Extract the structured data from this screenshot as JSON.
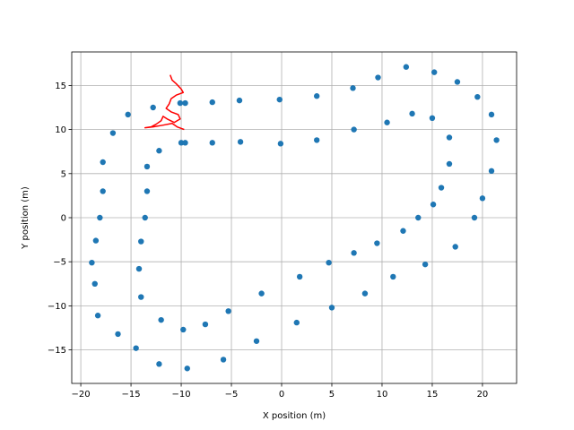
{
  "chart_data": {
    "type": "scatter",
    "title": "",
    "xlabel": "X position (m)",
    "ylabel": "Y position (m)",
    "xlim": [
      -20.9,
      23.4
    ],
    "ylim": [
      -18.8,
      18.8
    ],
    "xticks": [
      -20,
      -15,
      -10,
      -5,
      0,
      5,
      10,
      15,
      20
    ],
    "yticks": [
      -15,
      -10,
      -5,
      0,
      5,
      10,
      15
    ],
    "grid": true,
    "colors": {
      "landmarks": "#1f77b4",
      "trajectory": "#ff0000"
    },
    "series": [
      {
        "type": "scatter",
        "points": [
          [
            12.4,
            17.1
          ],
          [
            15.2,
            16.5
          ],
          [
            17.5,
            15.4
          ],
          [
            19.5,
            13.7
          ],
          [
            20.9,
            11.7
          ],
          [
            21.4,
            8.8
          ],
          [
            20.9,
            5.3
          ],
          [
            20.0,
            2.2
          ],
          [
            19.2,
            0.0
          ],
          [
            17.3,
            -3.3
          ],
          [
            14.3,
            -5.3
          ],
          [
            11.1,
            -6.7
          ],
          [
            8.3,
            -8.6
          ],
          [
            5.0,
            -10.2
          ],
          [
            1.5,
            -11.9
          ],
          [
            -2.5,
            -14.0
          ],
          [
            -5.8,
            -16.1
          ],
          [
            -9.4,
            -17.1
          ],
          [
            -12.2,
            -16.6
          ],
          [
            -14.5,
            -14.8
          ],
          [
            -16.3,
            -13.2
          ],
          [
            -18.3,
            -11.1
          ],
          [
            -18.6,
            -7.5
          ],
          [
            -18.9,
            -5.1
          ],
          [
            -18.5,
            -2.6
          ],
          [
            -18.1,
            0.0
          ],
          [
            -17.8,
            3.0
          ],
          [
            -17.8,
            6.3
          ],
          [
            -16.8,
            9.6
          ],
          [
            -15.3,
            11.7
          ],
          [
            -12.8,
            12.5
          ],
          [
            -10.1,
            13.0
          ],
          [
            -9.6,
            13.0
          ],
          [
            -6.9,
            13.1
          ],
          [
            -4.2,
            13.3
          ],
          [
            -0.2,
            13.4
          ],
          [
            3.5,
            13.8
          ],
          [
            7.1,
            14.7
          ],
          [
            9.6,
            15.9
          ],
          [
            13.0,
            11.8
          ],
          [
            15.0,
            11.3
          ],
          [
            16.7,
            9.1
          ],
          [
            16.7,
            6.1
          ],
          [
            15.9,
            3.4
          ],
          [
            15.1,
            1.5
          ],
          [
            13.6,
            0.0
          ],
          [
            12.1,
            -1.5
          ],
          [
            9.5,
            -2.9
          ],
          [
            7.2,
            -4.0
          ],
          [
            4.7,
            -5.1
          ],
          [
            1.8,
            -6.7
          ],
          [
            -2.0,
            -8.6
          ],
          [
            -5.3,
            -10.6
          ],
          [
            -7.6,
            -12.1
          ],
          [
            -9.8,
            -12.7
          ],
          [
            -12.0,
            -11.6
          ],
          [
            -14.0,
            -9.0
          ],
          [
            -14.2,
            -5.8
          ],
          [
            -14.0,
            -2.7
          ],
          [
            -13.6,
            0.0
          ],
          [
            -13.4,
            3.0
          ],
          [
            -13.4,
            5.8
          ],
          [
            -12.2,
            7.6
          ],
          [
            -10.0,
            8.5
          ],
          [
            -9.6,
            8.5
          ],
          [
            -6.9,
            8.5
          ],
          [
            -4.1,
            8.6
          ],
          [
            -0.1,
            8.4
          ],
          [
            3.5,
            8.8
          ],
          [
            7.2,
            10.0
          ],
          [
            10.5,
            10.8
          ]
        ]
      },
      {
        "type": "line",
        "points": [
          [
            -11.1,
            16.2
          ],
          [
            -10.9,
            15.6
          ],
          [
            -10.5,
            15.2
          ],
          [
            -10.0,
            14.6
          ],
          [
            -9.8,
            14.2
          ],
          [
            -10.5,
            13.9
          ],
          [
            -11.0,
            13.5
          ],
          [
            -11.2,
            12.9
          ],
          [
            -11.5,
            12.4
          ],
          [
            -11.0,
            12.0
          ],
          [
            -10.3,
            11.7
          ],
          [
            -10.1,
            11.2
          ],
          [
            -10.7,
            10.8
          ],
          [
            -11.4,
            11.2
          ],
          [
            -11.8,
            11.5
          ],
          [
            -12.0,
            11.0
          ],
          [
            -12.5,
            10.6
          ],
          [
            -13.0,
            10.3
          ],
          [
            -13.6,
            10.2
          ],
          [
            -12.8,
            10.3
          ],
          [
            -11.8,
            10.5
          ],
          [
            -10.9,
            10.7
          ],
          [
            -10.4,
            10.3
          ],
          [
            -9.7,
            10.0
          ]
        ]
      }
    ]
  }
}
